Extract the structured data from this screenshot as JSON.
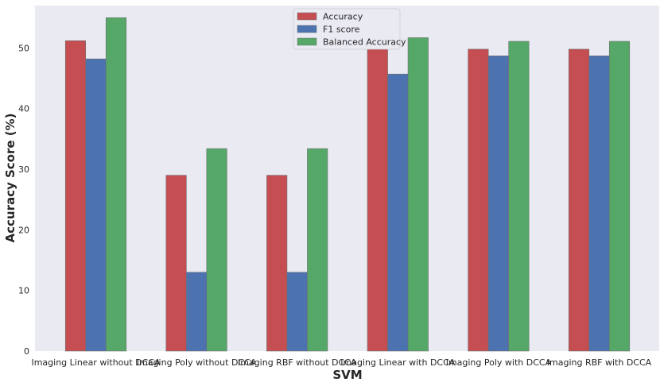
{
  "chart_data": {
    "type": "bar",
    "xlabel": "SVM",
    "ylabel": "Accuracy Score (%)",
    "ylim": [
      0,
      57
    ],
    "yticks": [
      0,
      10,
      20,
      30,
      40,
      50
    ],
    "grid": false,
    "legend_position": "top-center",
    "categories": [
      "Imaging Linear without DCCA",
      "Imaging Poly without DCCA",
      "Imaging RBF without DCCA",
      "Imaging Linear with DCCA",
      "Imaging Poly with DCCA",
      "Imaging RBF with DCCA"
    ],
    "series": [
      {
        "name": "Accuracy",
        "color": "#c44e52",
        "values": [
          51.2,
          29.0,
          29.0,
          49.8,
          49.8,
          49.8
        ]
      },
      {
        "name": "F1 score",
        "color": "#4c72b0",
        "values": [
          48.2,
          13.0,
          13.0,
          45.7,
          48.7,
          48.7
        ]
      },
      {
        "name": "Balanced Accuracy",
        "color": "#55a868",
        "values": [
          55.0,
          33.4,
          33.4,
          51.7,
          51.1,
          51.1
        ]
      }
    ]
  }
}
